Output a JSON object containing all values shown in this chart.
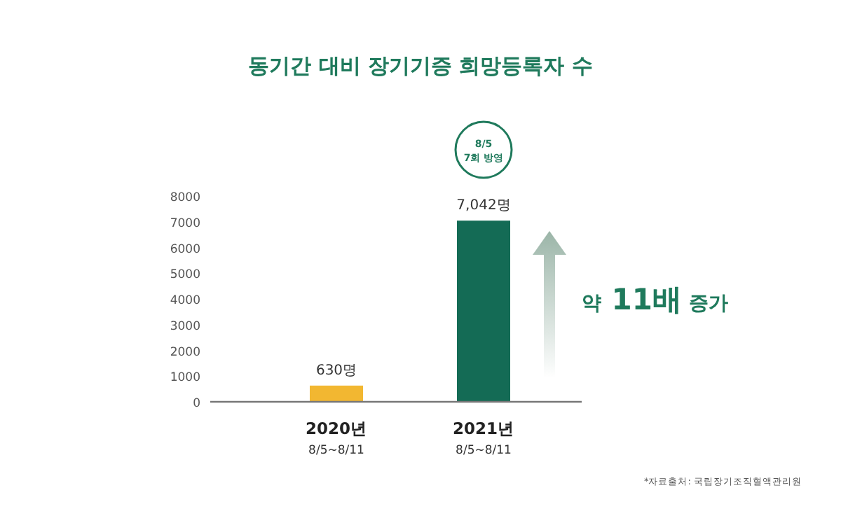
{
  "chart_data": {
    "type": "bar",
    "title": "동기간 대비 장기기증 희망등록자 수",
    "categories": [
      "2020년\n8/5~8/11",
      "2021년\n8/5~8/11"
    ],
    "values": [
      630,
      7042
    ],
    "colors": [
      "#f2b731",
      "#146b55"
    ],
    "value_labels": [
      "630명",
      "7,042명"
    ],
    "ylim": [
      0,
      8000
    ],
    "yticks": [
      0,
      1000,
      2000,
      3000,
      4000,
      5000,
      6000,
      7000,
      8000
    ],
    "grid": false,
    "annotations": [
      "8/5\n7회 방영",
      "약 11배 증가",
      "*자료출처: 국립장기조직혈액관리원"
    ]
  }
}
